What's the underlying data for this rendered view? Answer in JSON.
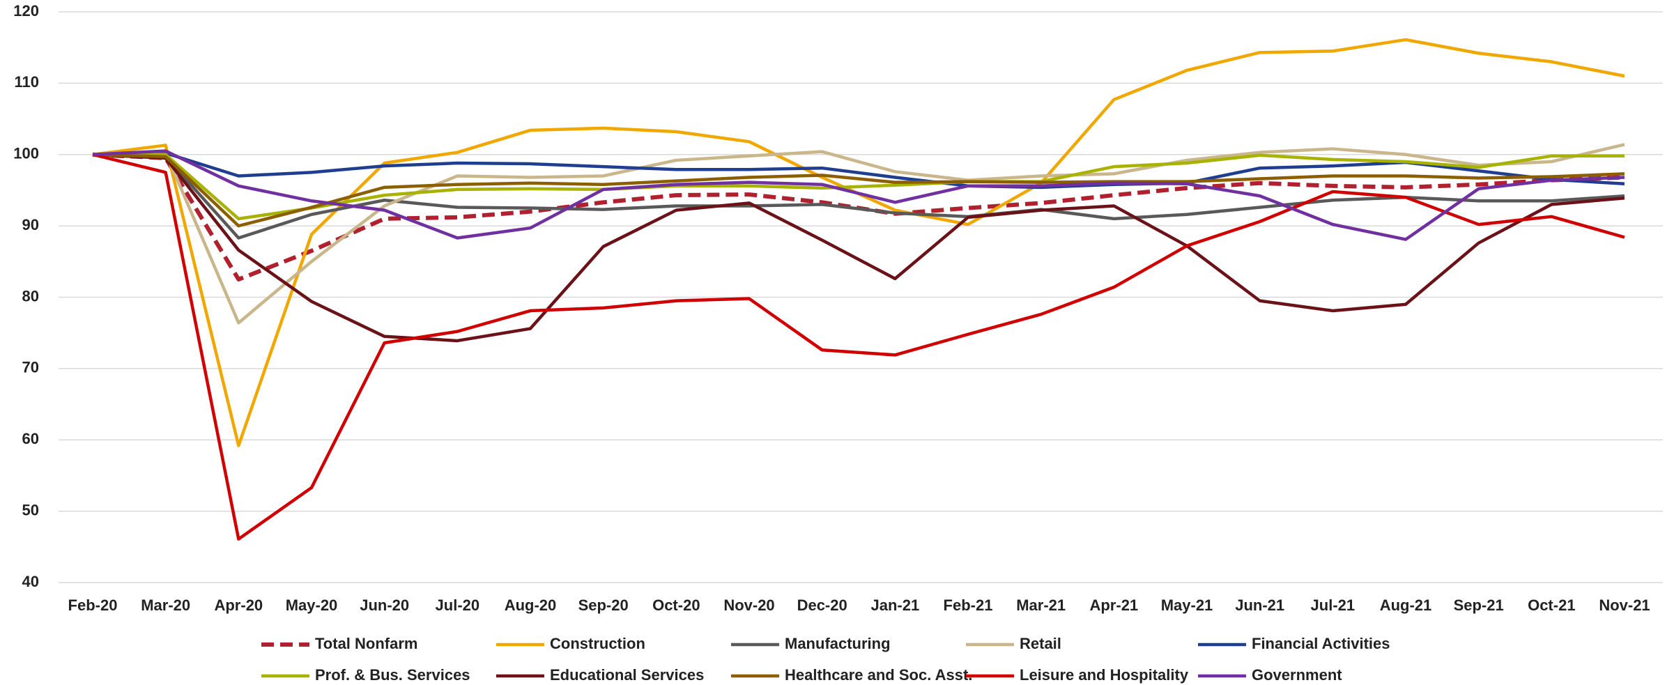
{
  "chart_data": {
    "type": "line",
    "categories": [
      "Feb-20",
      "Mar-20",
      "Apr-20",
      "May-20",
      "Jun-20",
      "Jul-20",
      "Aug-20",
      "Sep-20",
      "Oct-20",
      "Nov-20",
      "Dec-20",
      "Jan-21",
      "Feb-21",
      "Mar-21",
      "Apr-21",
      "May-21",
      "Jun-21",
      "Jul-21",
      "Aug-21",
      "Sep-21",
      "Oct-21",
      "Nov-21"
    ],
    "ylim": [
      40,
      120
    ],
    "yticks": [
      40,
      50,
      60,
      70,
      80,
      90,
      100,
      110,
      120
    ],
    "grid": true,
    "legend": "bottom",
    "series": [
      {
        "name": "Total Nonfarm",
        "color": "#B0202E",
        "style": "dashed",
        "values": [
          100,
          99.5,
          82.5,
          86.5,
          91,
          91.2,
          92,
          93.3,
          94.3,
          94.4,
          93.3,
          91.7,
          92.5,
          93.2,
          94.3,
          95.3,
          96,
          95.6,
          95.4,
          95.8,
          96.4,
          96.8
        ]
      },
      {
        "name": "Construction",
        "color": "#F0A800",
        "values": [
          100,
          101.3,
          59.2,
          88.8,
          98.8,
          100.3,
          103.4,
          103.7,
          103.2,
          101.8,
          96.8,
          92.2,
          90.2,
          96,
          107.7,
          111.8,
          114.3,
          114.5,
          116.1,
          114.2,
          113,
          111
        ]
      },
      {
        "name": "Manufacturing",
        "color": "#595959",
        "values": [
          100,
          99.7,
          88.3,
          91.6,
          93.6,
          92.6,
          92.5,
          92.3,
          92.8,
          92.8,
          93,
          91.8,
          91.3,
          92.3,
          91,
          91.6,
          92.6,
          93.6,
          94,
          93.5,
          93.5,
          94.2
        ]
      },
      {
        "name": "Retail",
        "color": "#C9B68A",
        "values": [
          100,
          100.3,
          76.4,
          85,
          92.8,
          97,
          96.8,
          97,
          99.2,
          99.8,
          100.4,
          97.6,
          96.4,
          97,
          97.3,
          99.2,
          100.3,
          100.8,
          100,
          98.5,
          99,
          101.4
        ]
      },
      {
        "name": "Financial Activities",
        "color": "#1F3E8F",
        "values": [
          100,
          100.2,
          97,
          97.5,
          98.4,
          98.8,
          98.7,
          98.3,
          97.9,
          97.9,
          98.1,
          96.8,
          95.6,
          95.4,
          95.8,
          96,
          98.1,
          98.4,
          98.9,
          97.7,
          96.5,
          95.9
        ]
      },
      {
        "name": "Prof. & Bus. Services",
        "color": "#A7B300",
        "values": [
          100,
          100,
          91,
          92.5,
          94.3,
          95.1,
          95.2,
          95.1,
          95.6,
          95.6,
          95.3,
          95.7,
          96.2,
          96.2,
          98.3,
          98.8,
          99.9,
          99.3,
          99,
          98.2,
          99.8,
          99.8
        ]
      },
      {
        "name": "Educational Services",
        "color": "#6B1218",
        "values": [
          100,
          99.5,
          86.6,
          79.4,
          74.5,
          73.9,
          75.6,
          87.1,
          92.2,
          93.2,
          88,
          82.6,
          91.2,
          92.2,
          92.8,
          87.2,
          79.5,
          78.1,
          79,
          87.6,
          93,
          93.9
        ]
      },
      {
        "name": "Healthcare and Soc. Asst.",
        "color": "#8B5E00",
        "values": [
          100,
          99.7,
          90,
          92.6,
          95.4,
          95.8,
          96,
          95.8,
          96.3,
          96.8,
          97.1,
          96.1,
          96.2,
          96.1,
          96.2,
          96.2,
          96.6,
          97,
          97,
          96.7,
          96.9,
          97.3
        ]
      },
      {
        "name": "Leisure and Hospitality",
        "color": "#D00000",
        "values": [
          100,
          97.5,
          46.1,
          53.3,
          73.6,
          75.2,
          78.1,
          78.5,
          79.5,
          79.8,
          72.6,
          71.9,
          74.8,
          77.6,
          81.4,
          87.2,
          90.6,
          94.8,
          94,
          90.2,
          91.3,
          88.4
        ]
      },
      {
        "name": "Government",
        "color": "#7030A0",
        "values": [
          100,
          100.5,
          95.6,
          93.5,
          92.2,
          88.3,
          89.7,
          95.1,
          95.8,
          96.1,
          95.8,
          93.3,
          95.6,
          95.6,
          96,
          95.9,
          94.2,
          90.2,
          88.1,
          95.2,
          96.4,
          96.8
        ]
      }
    ]
  }
}
